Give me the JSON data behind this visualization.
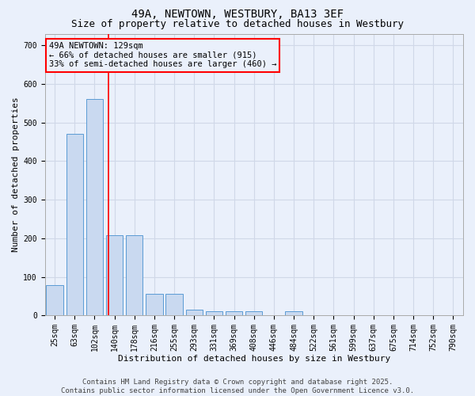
{
  "title1": "49A, NEWTOWN, WESTBURY, BA13 3EF",
  "title2": "Size of property relative to detached houses in Westbury",
  "xlabel": "Distribution of detached houses by size in Westbury",
  "ylabel": "Number of detached properties",
  "categories": [
    "25sqm",
    "63sqm",
    "102sqm",
    "140sqm",
    "178sqm",
    "216sqm",
    "255sqm",
    "293sqm",
    "331sqm",
    "369sqm",
    "408sqm",
    "446sqm",
    "484sqm",
    "522sqm",
    "561sqm",
    "599sqm",
    "637sqm",
    "675sqm",
    "714sqm",
    "752sqm",
    "790sqm"
  ],
  "values": [
    78,
    470,
    560,
    208,
    208,
    57,
    57,
    15,
    10,
    10,
    10,
    0,
    10,
    0,
    0,
    0,
    0,
    0,
    0,
    0,
    0
  ],
  "bar_color": "#c9d9f0",
  "bar_edge_color": "#5b9bd5",
  "grid_color": "#d0d8e8",
  "background_color": "#eaf0fb",
  "annotation_text": "49A NEWTOWN: 129sqm\n← 66% of detached houses are smaller (915)\n33% of semi-detached houses are larger (460) →",
  "ylim": [
    0,
    730
  ],
  "yticks": [
    0,
    100,
    200,
    300,
    400,
    500,
    600,
    700
  ],
  "footer1": "Contains HM Land Registry data © Crown copyright and database right 2025.",
  "footer2": "Contains public sector information licensed under the Open Government Licence v3.0.",
  "title_fontsize": 10,
  "subtitle_fontsize": 9,
  "axis_label_fontsize": 8,
  "tick_fontsize": 7,
  "annotation_fontsize": 7.5,
  "footer_fontsize": 6.5
}
